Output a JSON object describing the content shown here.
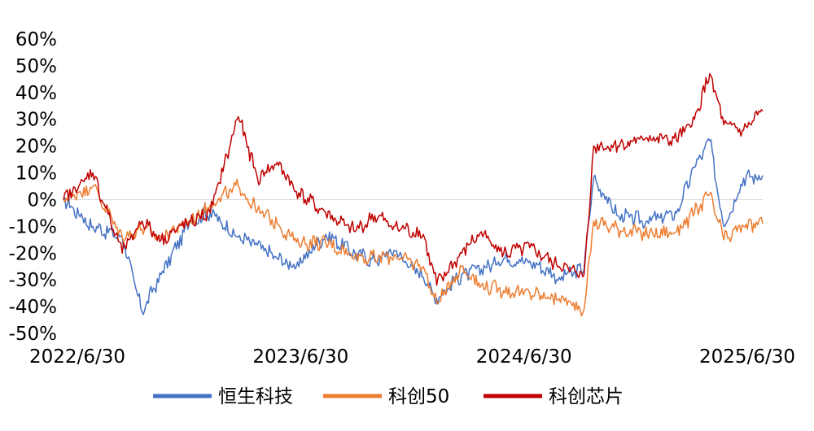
{
  "chart_data": {
    "type": "line",
    "title": "",
    "xlabel": "",
    "ylabel": "",
    "x_range": [
      "2022/6/30",
      "2025/6/30"
    ],
    "x_tick_labels": [
      "2022/6/30",
      "2023/6/30",
      "2024/6/30",
      "2025/6/30"
    ],
    "y_tick_labels": [
      "60%",
      "50%",
      "40%",
      "30%",
      "20%",
      "10%",
      "0%",
      "-10%",
      "-20%",
      "-30%",
      "-40%",
      "-50%"
    ],
    "ylim": [
      -50,
      60
    ],
    "y_unit": "%",
    "grid": false,
    "zero_line": true,
    "legend_position": "bottom-center",
    "dates": [
      "2022/6/30",
      "2022/8/15",
      "2022/9/30",
      "2022/10/31",
      "2022/11/30",
      "2023/1/15",
      "2023/2/15",
      "2023/3/31",
      "2023/4/30",
      "2023/5/31",
      "2023/6/30",
      "2023/8/15",
      "2023/9/30",
      "2023/10/31",
      "2023/11/30",
      "2024/1/15",
      "2024/2/5",
      "2024/3/15",
      "2024/4/15",
      "2024/5/20",
      "2024/6/30",
      "2024/8/15",
      "2024/9/23",
      "2024/10/8",
      "2024/11/15",
      "2024/12/31",
      "2025/2/15",
      "2025/3/15",
      "2025/4/8",
      "2025/4/30",
      "2025/5/31",
      "2025/6/30"
    ],
    "series": [
      {
        "name": "恒生科技",
        "color": "#4472C4",
        "values": [
          0,
          -10,
          -14,
          -42,
          -28,
          -8,
          -5,
          -14,
          -17,
          -22,
          -25,
          -13,
          -20,
          -23,
          -19,
          -29,
          -37,
          -28,
          -26,
          -22,
          -23,
          -29,
          -26,
          8,
          -6,
          -8,
          -5,
          12,
          22,
          -10,
          8,
          9
        ]
      },
      {
        "name": "科创50",
        "color": "#ED7D31",
        "values": [
          0,
          5,
          -14,
          -11,
          -14,
          -8,
          -2,
          5,
          -4,
          -9,
          -16,
          -16,
          -21,
          -22,
          -21,
          -25,
          -39,
          -25,
          -32,
          -34,
          -35,
          -37,
          -41,
          -8,
          -11,
          -13,
          -12,
          -5,
          2,
          -15,
          -10,
          -9
        ]
      },
      {
        "name": "科创芯片",
        "color": "#C00000",
        "values": [
          0,
          10,
          -20,
          -8,
          -15,
          -8,
          -5,
          31,
          8,
          14,
          3,
          -5,
          -12,
          -6,
          -10,
          -13,
          -32,
          -20,
          -12,
          -20,
          -18,
          -25,
          -28,
          20,
          20,
          23,
          22,
          30,
          47,
          28,
          26,
          33
        ]
      }
    ]
  }
}
